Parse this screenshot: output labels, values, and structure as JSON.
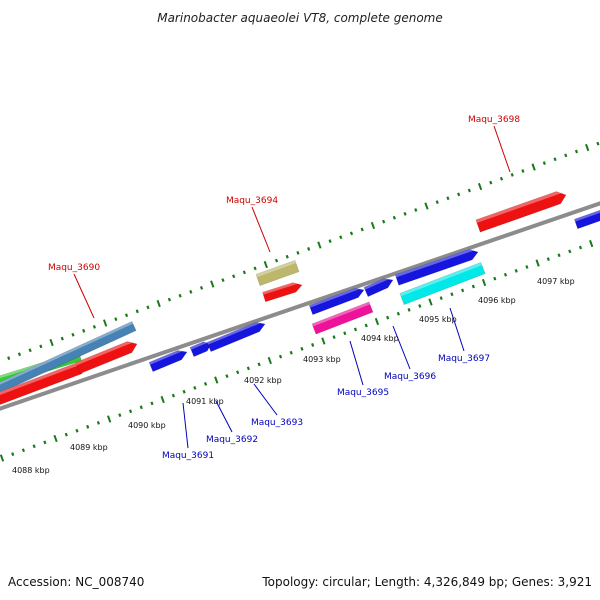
{
  "title": "Marinobacter aquaeolei VT8, complete genome",
  "footer": {
    "accession": "Accession: NC_008740",
    "topology": "Topology: circular; Length: 4,326,849 bp; Genes: 3,921"
  },
  "colors": {
    "backbone": "#8c8c8c",
    "tick": "#1a7a1a",
    "label_forward": "#cc0000",
    "label_reverse": "#0000bb"
  },
  "scale_labels": [
    "4088 kbp",
    "4089 kbp",
    "4090 kbp",
    "4091 kbp",
    "4092 kbp",
    "4093 kbp",
    "4094 kbp",
    "4095 kbp",
    "4096 kbp",
    "4097 kbp"
  ],
  "gene_labels": [
    {
      "name": "Maqu_3690",
      "strand": "forward"
    },
    {
      "name": "Maqu_3694",
      "strand": "forward"
    },
    {
      "name": "Maqu_3698",
      "strand": "forward"
    },
    {
      "name": "Maqu_3691",
      "strand": "reverse"
    },
    {
      "name": "Maqu_3692",
      "strand": "reverse"
    },
    {
      "name": "Maqu_3693",
      "strand": "reverse"
    },
    {
      "name": "Maqu_3695",
      "strand": "reverse"
    },
    {
      "name": "Maqu_3696",
      "strand": "reverse"
    },
    {
      "name": "Maqu_3697",
      "strand": "reverse"
    }
  ],
  "features": [
    {
      "id": "forward-feature-green",
      "color": "#33cc33"
    },
    {
      "id": "forward-feature-steelblue",
      "color": "#4682b4"
    },
    {
      "id": "forward-feature-red-left",
      "color": "#ee1111"
    },
    {
      "id": "forward-feature-red-arrow",
      "color": "#ee1111"
    },
    {
      "id": "forward-feature-khaki",
      "color": "#bdb76b"
    },
    {
      "id": "forward-feature-red-small",
      "color": "#ee1111"
    },
    {
      "id": "forward-feature-red-right",
      "color": "#ee1111"
    },
    {
      "id": "reverse-feature-1",
      "color": "#1515dd"
    },
    {
      "id": "reverse-feature-2",
      "color": "#1515dd"
    },
    {
      "id": "reverse-feature-3",
      "color": "#1515dd"
    },
    {
      "id": "reverse-feature-4",
      "color": "#1515dd"
    },
    {
      "id": "reverse-feature-5",
      "color": "#1515dd"
    },
    {
      "id": "reverse-feature-6",
      "color": "#1515dd"
    },
    {
      "id": "reverse-feature-7",
      "color": "#1515dd"
    },
    {
      "id": "reverse-feature-magenta",
      "color": "#ee1199"
    },
    {
      "id": "reverse-feature-cyan",
      "color": "#00e8e8"
    }
  ]
}
